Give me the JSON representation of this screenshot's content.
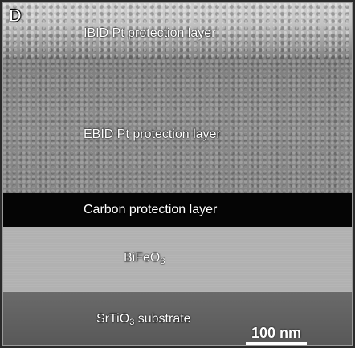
{
  "panel_label": "D",
  "layers": {
    "ibid": "IBID Pt protection layer",
    "ebid": "EBID Pt protection layer",
    "carbon": "Carbon protection layer",
    "bfo_base": "BiFeO",
    "bfo_sub": "3",
    "sto_base": "SrTiO",
    "sto_sub": "3",
    "sto_rest": " substrate"
  },
  "scale_bar": {
    "label": "100 nm"
  }
}
